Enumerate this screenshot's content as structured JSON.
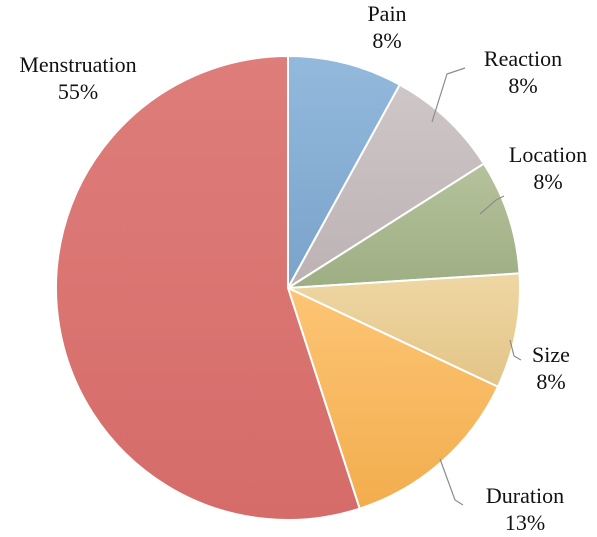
{
  "chart_data": {
    "type": "pie",
    "title": "",
    "start_angle_deg": 0,
    "direction": "clockwise",
    "slices": [
      {
        "label": "Pain",
        "value": 8,
        "value_label": "8%",
        "color": "#93b9dc",
        "color_dark": "#7aa3cb"
      },
      {
        "label": "Reaction",
        "value": 8,
        "value_label": "8%",
        "color": "#cfc6c8",
        "color_dark": "#bcb2b4"
      },
      {
        "label": "Location",
        "value": 8,
        "value_label": "8%",
        "color": "#b5c29c",
        "color_dark": "#9eae83"
      },
      {
        "label": "Size",
        "value": 8,
        "value_label": "8%",
        "color": "#efd7a4",
        "color_dark": "#e2c486"
      },
      {
        "label": "Duration",
        "value": 13,
        "value_label": "13%",
        "color": "#fdc575",
        "color_dark": "#f2ad4d"
      },
      {
        "label": "Menstruation",
        "value": 55,
        "value_label": "55%",
        "color": "#de7d7a",
        "color_dark": "#d56c69"
      }
    ]
  }
}
